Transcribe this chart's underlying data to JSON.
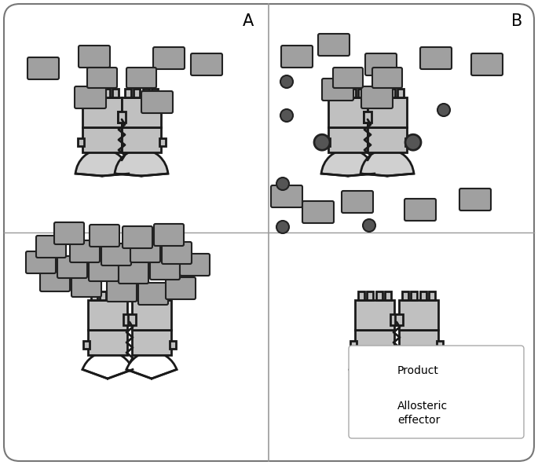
{
  "fig_width": 6.85,
  "fig_height": 5.92,
  "bg": "#ffffff",
  "border_color": "#888888",
  "receptor_fill_light": "#c8c8c8",
  "receptor_fill_dark": "#a8a8a8",
  "receptor_stroke": "#1a1a1a",
  "product_fill": "#a0a0a0",
  "product_stroke": "#222222",
  "effector_fill": "#555555",
  "effector_stroke": "#222222",
  "label_A": "A",
  "label_B": "B",
  "label_product": "Product",
  "label_effector": "Allosteric\neffector"
}
